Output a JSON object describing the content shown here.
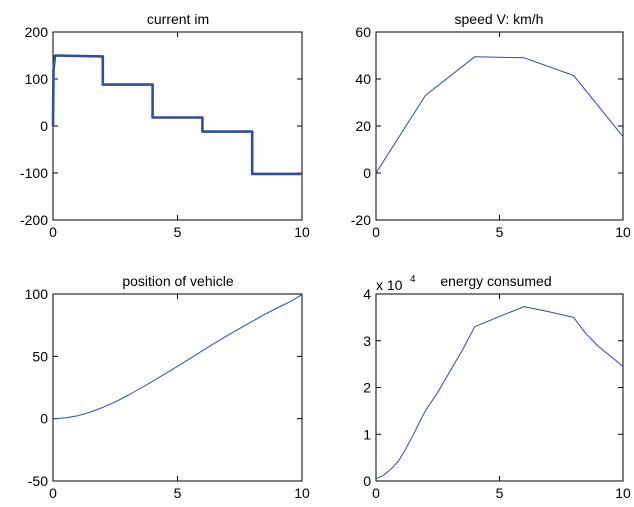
{
  "chart_data": [
    {
      "type": "line",
      "title": "current im",
      "xlabel": "",
      "ylabel": "",
      "xlim": [
        0,
        10
      ],
      "ylim": [
        -200,
        200
      ],
      "xticks": [
        0,
        5,
        10
      ],
      "yticks": [
        -200,
        -100,
        0,
        100,
        200
      ],
      "xtick_labels": [
        "0",
        "5",
        "10"
      ],
      "ytick_labels": [
        "-200",
        "-100",
        "0",
        "100",
        "200"
      ],
      "exponent_base": "",
      "exponent_power": "",
      "grid": false,
      "color": "#2e4f9e",
      "noisy": true,
      "series": [
        {
          "x": [
            0,
            0.02,
            0.08,
            2.0,
            2.0,
            4.0,
            4.0,
            6.0,
            6.0,
            8.0,
            8.0,
            10
          ],
          "y": [
            0,
            120,
            150,
            148,
            88,
            88,
            18,
            18,
            -12,
            -12,
            -102,
            -102
          ]
        }
      ]
    },
    {
      "type": "line",
      "title": "speed V: km/h",
      "xlabel": "",
      "ylabel": "",
      "xlim": [
        0,
        10
      ],
      "ylim": [
        -20,
        60
      ],
      "xticks": [
        0,
        5,
        10
      ],
      "yticks": [
        -20,
        0,
        20,
        40,
        60
      ],
      "xtick_labels": [
        "0",
        "5",
        "10"
      ],
      "ytick_labels": [
        "-20",
        "0",
        "20",
        "40",
        "60"
      ],
      "exponent_base": "",
      "exponent_power": "",
      "grid": false,
      "color": "#2e4f9e",
      "noisy": false,
      "series": [
        {
          "x": [
            0,
            2,
            4,
            6,
            8,
            10
          ],
          "y": [
            0,
            33,
            49.5,
            49,
            41.5,
            15.5
          ]
        }
      ]
    },
    {
      "type": "line",
      "title": "position of vehicle",
      "xlabel": "",
      "ylabel": "",
      "xlim": [
        0,
        10
      ],
      "ylim": [
        -50,
        100
      ],
      "xticks": [
        0,
        5,
        10
      ],
      "yticks": [
        -50,
        0,
        50,
        100
      ],
      "xtick_labels": [
        "0",
        "5",
        "10"
      ],
      "ytick_labels": [
        "-50",
        "0",
        "50",
        "100"
      ],
      "exponent_base": "",
      "exponent_power": "",
      "grid": false,
      "color": "#2e4f9e",
      "noisy": false,
      "series": [
        {
          "x": [
            0,
            0.5,
            1,
            1.5,
            2,
            2.5,
            3,
            3.5,
            4,
            4.5,
            5,
            5.5,
            6,
            6.5,
            7,
            7.5,
            8,
            8.5,
            9,
            9.5,
            10
          ],
          "y": [
            0,
            0.6,
            2.4,
            5.3,
            9,
            13.5,
            18.6,
            24.2,
            30,
            36,
            42,
            48.2,
            54.5,
            60.6,
            66.6,
            72.4,
            78,
            83.6,
            88.8,
            93.5,
            99.5
          ]
        }
      ]
    },
    {
      "type": "line",
      "title": "energy consumed",
      "xlabel": "",
      "ylabel": "",
      "xlim": [
        0,
        10
      ],
      "ylim": [
        0,
        4
      ],
      "xticks": [
        0,
        5,
        10
      ],
      "yticks": [
        0,
        1,
        2,
        3,
        4
      ],
      "xtick_labels": [
        "0",
        "5",
        "10"
      ],
      "ytick_labels": [
        "0",
        "1",
        "2",
        "3",
        "4"
      ],
      "exponent_base": "x 10",
      "exponent_power": "4",
      "grid": false,
      "color": "#2e4f9e",
      "noisy": false,
      "series": [
        {
          "x": [
            0,
            0.3,
            0.6,
            0.9,
            1.2,
            1.5,
            1.8,
            2.0,
            2.5,
            3.0,
            3.5,
            4.0,
            5.0,
            6.0,
            7.0,
            8.0,
            8.5,
            9.0,
            9.5,
            10
          ],
          "y": [
            0.05,
            0.12,
            0.25,
            0.42,
            0.68,
            0.98,
            1.3,
            1.5,
            1.9,
            2.35,
            2.8,
            3.3,
            3.52,
            3.73,
            3.62,
            3.5,
            3.15,
            2.88,
            2.67,
            2.45
          ]
        }
      ]
    }
  ]
}
